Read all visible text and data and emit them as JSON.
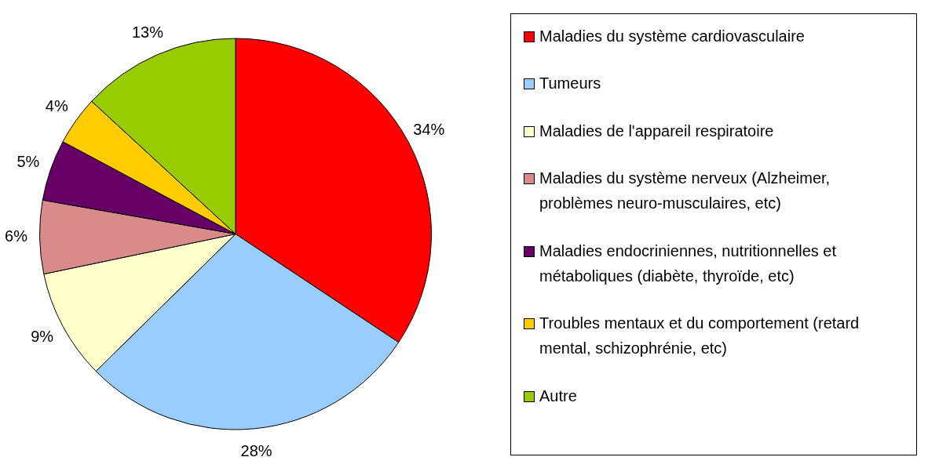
{
  "chart_data": {
    "type": "pie",
    "categories": [
      "Maladies du système cardiovasculaire",
      "Tumeurs",
      "Maladies de l'appareil respiratoire",
      "Maladies du système nerveux (Alzheimer, problèmes neuro-musculaires, etc)",
      "Maladies endocriniennes, nutritionnelles et métaboliques (diabète, thyroïde, etc)",
      "Troubles mentaux et du comportement (retard mental, schizophrénie, etc)",
      "Autre"
    ],
    "values": [
      34,
      28,
      9,
      6,
      5,
      4,
      13
    ],
    "colors": [
      "#ff0000",
      "#99ccff",
      "#ffffcc",
      "#d98a8a",
      "#660066",
      "#ffcc00",
      "#99cc00"
    ],
    "value_labels": [
      "34%",
      "28%",
      "9%",
      "6%",
      "5%",
      "4%",
      "13%"
    ],
    "legend": "right"
  }
}
